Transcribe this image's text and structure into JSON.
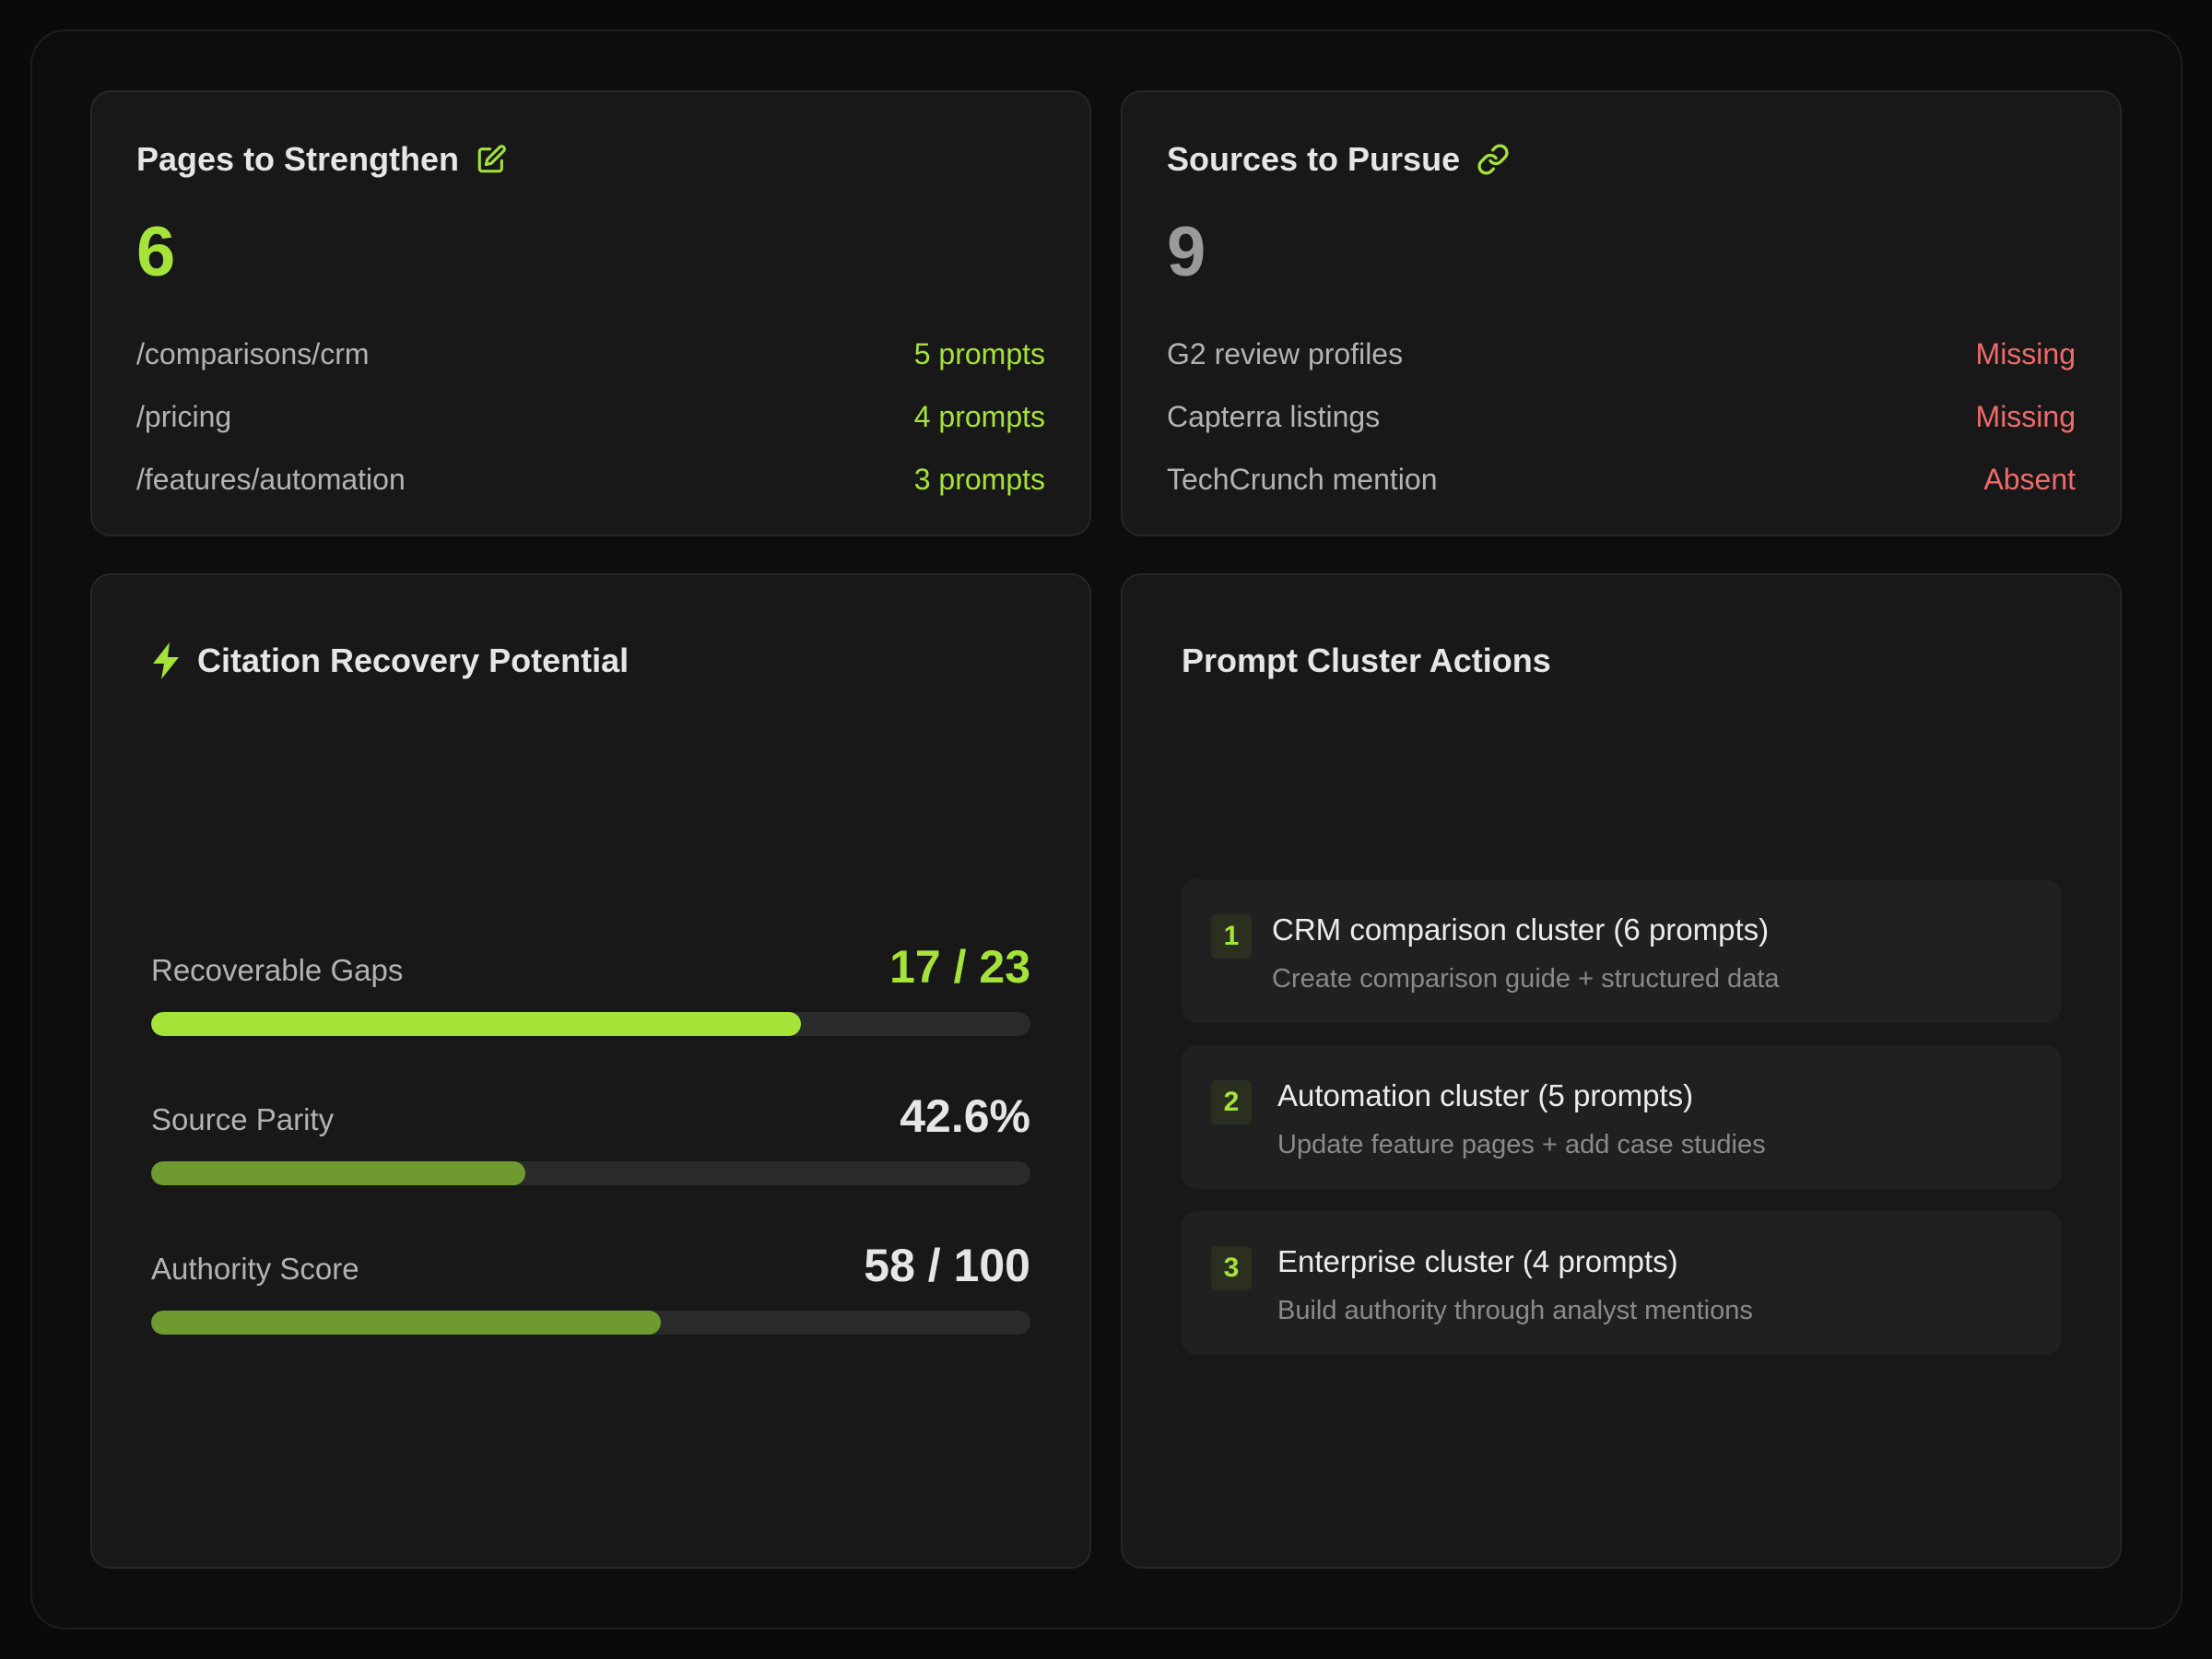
{
  "pages_card": {
    "title": "Pages to Strengthen",
    "icon": "edit-icon",
    "count": "6",
    "rows": [
      {
        "label": "/comparisons/crm",
        "value": "5 prompts"
      },
      {
        "label": "/pricing",
        "value": "4 prompts"
      },
      {
        "label": "/features/automation",
        "value": "3 prompts"
      }
    ]
  },
  "sources_card": {
    "title": "Sources to Pursue",
    "icon": "link-icon",
    "count": "9",
    "rows": [
      {
        "label": "G2 review profiles",
        "value": "Missing"
      },
      {
        "label": "Capterra listings",
        "value": "Missing"
      },
      {
        "label": "TechCrunch mention",
        "value": "Absent"
      }
    ]
  },
  "recovery_card": {
    "title": "Citation Recovery Potential",
    "icon": "bolt-icon",
    "metrics": [
      {
        "label": "Recoverable Gaps",
        "value": "17 / 23",
        "fraction": 0.739
      },
      {
        "label": "Source Parity",
        "value": "42.6%",
        "fraction": 0.426
      },
      {
        "label": "Authority Score",
        "value": "58 / 100",
        "fraction": 0.58
      }
    ]
  },
  "actions_card": {
    "title": "Prompt Cluster Actions",
    "items": [
      {
        "number": "1",
        "title": "CRM comparison cluster (6 prompts)",
        "description": "Create comparison guide + structured data"
      },
      {
        "number": "2",
        "title": "Automation cluster (5 prompts)",
        "description": "Update feature pages + add case studies"
      },
      {
        "number": "3",
        "title": "Enterprise cluster (4 prompts)",
        "description": "Build authority through analyst mentions"
      }
    ]
  },
  "colors": {
    "accent": "#a6e33a",
    "accent_dim": "#6f9a30",
    "danger": "#ef6b6b",
    "background": "#0a0a0a",
    "card": "#181818"
  }
}
